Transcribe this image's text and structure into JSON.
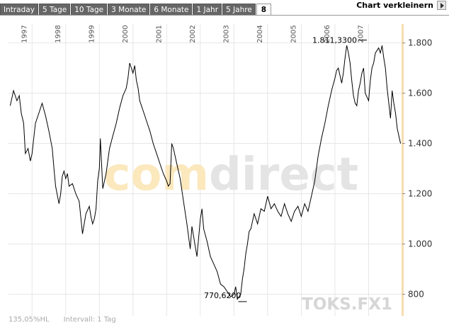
{
  "tabs": [
    {
      "label": "Intraday"
    },
    {
      "label": "5 Tage"
    },
    {
      "label": "10 Tage"
    },
    {
      "label": "3 Monate"
    },
    {
      "label": "6 Monate"
    },
    {
      "label": "1 Jahr"
    },
    {
      "label": "5 Jahre"
    },
    {
      "label": "8",
      "active": true
    }
  ],
  "toolbar": {
    "shrink_label": "Chart verkleinern",
    "shrink_icon": "arrow-right-icon"
  },
  "watermark": {
    "left": "com",
    "right": "direct",
    "left_color": "#fbe8bd",
    "right_color": "#e4e4e4"
  },
  "symbol": "TOKS.FX1",
  "footer": {
    "scale": "135,05%HL",
    "interval": "Intervall: 1 Tag"
  },
  "chart_data": {
    "type": "line",
    "title": "",
    "xlabel": "",
    "ylabel": "",
    "x_ticks": [
      "1997",
      "1998",
      "1999",
      "2000",
      "2001",
      "2002",
      "2003",
      "2004",
      "2005",
      "2006",
      "2007"
    ],
    "y_ticks": [
      "800",
      "1.000",
      "1.200",
      "1.400",
      "1.600",
      "1.800"
    ],
    "y_tick_values": [
      800,
      1000,
      1200,
      1400,
      1600,
      1800
    ],
    "ylim": [
      714,
      1875
    ],
    "xlim": [
      1996.3,
      2008.0
    ],
    "grid": true,
    "line_color": "#000000",
    "highlight_color": "#f7ddb0",
    "annotations": [
      {
        "label": "1.811,3300",
        "x": 2006.78,
        "y": 1811.33
      },
      {
        "label": "770,6200",
        "x": 2003.17,
        "y": 770.62
      }
    ],
    "series": [
      {
        "x": [
          1996.35,
          1996.45,
          1996.55,
          1996.62,
          1996.68,
          1996.75,
          1996.8,
          1996.88,
          1996.95,
          1997.0,
          1997.05,
          1997.1,
          1997.2,
          1997.3,
          1997.4,
          1997.5,
          1997.6,
          1997.65,
          1997.7,
          1997.8,
          1997.85,
          1997.9,
          1997.95,
          1998.0,
          1998.05,
          1998.1,
          1998.2,
          1998.3,
          1998.4,
          1998.5,
          1998.55,
          1998.6,
          1998.7,
          1998.75,
          1998.8,
          1998.85,
          1998.9,
          1998.95,
          1999.0,
          1999.03,
          1999.1,
          1999.2,
          1999.3,
          1999.4,
          1999.5,
          1999.6,
          1999.7,
          1999.8,
          1999.85,
          1999.9,
          1999.95,
          2000.0,
          2000.05,
          2000.1,
          2000.15,
          2000.2,
          2000.3,
          2000.35,
          2000.4,
          2000.5,
          2000.6,
          2000.7,
          2000.8,
          2000.9,
          2001.0,
          2001.05,
          2001.1,
          2001.15,
          2001.2,
          2001.3,
          2001.4,
          2001.5,
          2001.6,
          2001.7,
          2001.75,
          2001.8,
          2001.85,
          2001.9,
          2002.0,
          2002.05,
          2002.1,
          2002.2,
          2002.3,
          2002.4,
          2002.5,
          2002.6,
          2002.7,
          2002.8,
          2002.9,
          2003.0,
          2003.05,
          2003.1,
          2003.15,
          2003.2,
          2003.25,
          2003.3,
          2003.35,
          2003.4,
          2003.45,
          2003.5,
          2003.6,
          2003.7,
          2003.8,
          2003.9,
          2004.0,
          2004.1,
          2004.2,
          2004.3,
          2004.4,
          2004.5,
          2004.6,
          2004.7,
          2004.8,
          2004.9,
          2005.0,
          2005.1,
          2005.2,
          2005.3,
          2005.4,
          2005.5,
          2005.6,
          2005.7,
          2005.8,
          2005.9,
          2006.0,
          2006.05,
          2006.1,
          2006.2,
          2006.25,
          2006.3,
          2006.35,
          2006.4,
          2006.45,
          2006.5,
          2006.55,
          2006.6,
          2006.65,
          2006.7,
          2006.75,
          2006.8,
          2006.85,
          2006.9,
          2007.0,
          2007.05,
          2007.1,
          2007.15,
          2007.2,
          2007.25,
          2007.3,
          2007.35,
          2007.4,
          2007.45,
          2007.5,
          2007.55,
          2007.6,
          2007.65,
          2007.7,
          2007.75,
          2007.8,
          2007.85,
          2007.9,
          2007.95
        ],
        "values": [
          1550,
          1610,
          1570,
          1590,
          1520,
          1480,
          1360,
          1380,
          1330,
          1360,
          1420,
          1480,
          1520,
          1560,
          1510,
          1450,
          1380,
          1300,
          1230,
          1160,
          1200,
          1270,
          1290,
          1260,
          1280,
          1230,
          1240,
          1200,
          1170,
          1040,
          1080,
          1120,
          1150,
          1110,
          1080,
          1100,
          1140,
          1250,
          1300,
          1420,
          1220,
          1280,
          1380,
          1430,
          1480,
          1540,
          1590,
          1620,
          1660,
          1720,
          1700,
          1680,
          1710,
          1650,
          1620,
          1570,
          1530,
          1510,
          1490,
          1450,
          1400,
          1360,
          1320,
          1280,
          1250,
          1230,
          1240,
          1400,
          1380,
          1320,
          1260,
          1170,
          1080,
          980,
          1070,
          1030,
          990,
          950,
          1100,
          1140,
          1060,
          1010,
          950,
          920,
          890,
          840,
          830,
          810,
          790,
          800,
          830,
          780,
          790,
          800,
          860,
          900,
          960,
          1000,
          1050,
          1060,
          1120,
          1080,
          1140,
          1130,
          1190,
          1140,
          1160,
          1130,
          1110,
          1160,
          1120,
          1090,
          1130,
          1150,
          1110,
          1160,
          1130,
          1190,
          1250,
          1350,
          1420,
          1480,
          1550,
          1610,
          1660,
          1690,
          1700,
          1640,
          1680,
          1740,
          1790,
          1760,
          1720,
          1650,
          1590,
          1560,
          1550,
          1610,
          1640,
          1680,
          1700,
          1600,
          1570,
          1650,
          1700,
          1720,
          1760,
          1770,
          1780,
          1760,
          1790,
          1740,
          1700,
          1620,
          1560,
          1500,
          1610,
          1560,
          1520,
          1460,
          1430,
          1400
        ]
      }
    ]
  }
}
